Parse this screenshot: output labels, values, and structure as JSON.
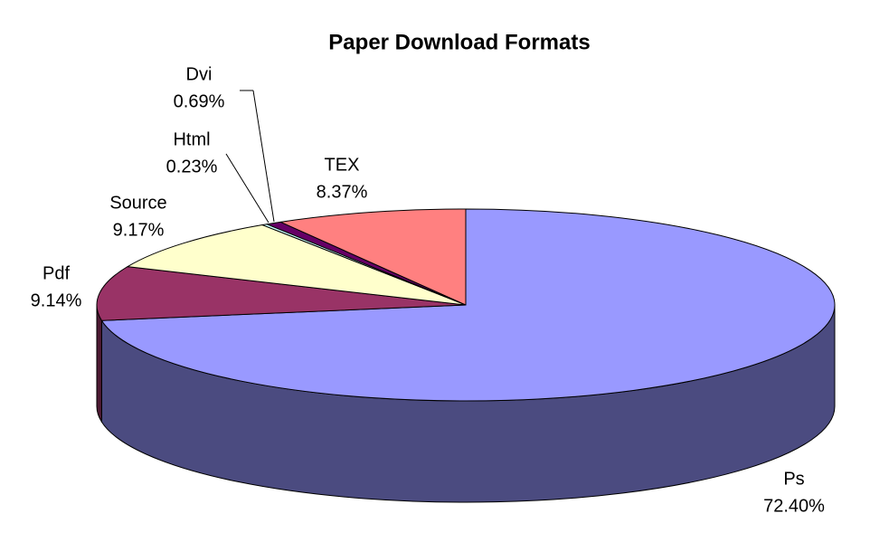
{
  "chart_data": {
    "type": "pie3d",
    "title": "Paper Download Formats",
    "categories": [
      "Ps",
      "Pdf",
      "Source",
      "Html",
      "Dvi",
      "TEX"
    ],
    "values": [
      72.4,
      9.14,
      9.17,
      0.23,
      0.69,
      8.37
    ],
    "value_labels": [
      "72.40%",
      "9.14%",
      "9.17%",
      "0.23%",
      "0.69%",
      "8.37%"
    ],
    "colors": [
      "#9999ff",
      "#993366",
      "#ffffcc",
      "#ccffff",
      "#660066",
      "#ff8080"
    ],
    "side_colors": [
      "#4b4b80",
      "#4d1a33",
      "#80805f",
      "#668080",
      "#330033",
      "#804040"
    ]
  }
}
